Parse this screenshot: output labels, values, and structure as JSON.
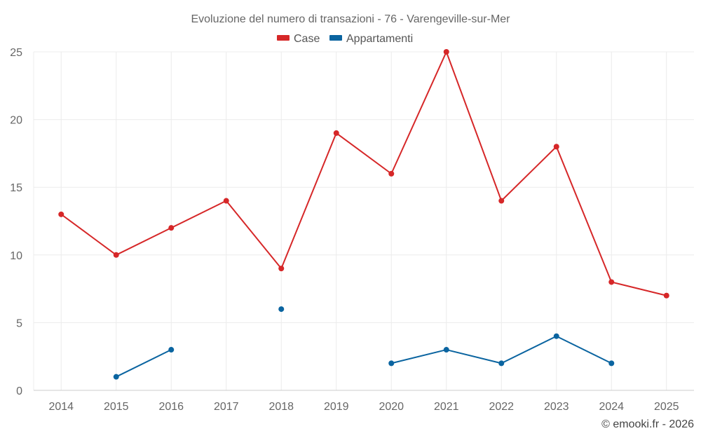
{
  "chart_data": {
    "type": "line",
    "title": "Evoluzione del numero di transazioni - 76 - Varengeville-sur-Mer",
    "x": [
      "2014",
      "2015",
      "2016",
      "2017",
      "2018",
      "2019",
      "2020",
      "2021",
      "2022",
      "2023",
      "2024",
      "2025"
    ],
    "series": [
      {
        "name": "Case",
        "color": "#d62728",
        "values": [
          13,
          10,
          12,
          14,
          9,
          19,
          16,
          25,
          14,
          18,
          8,
          7
        ]
      },
      {
        "name": "Appartamenti",
        "color": "#0a64a0",
        "values": [
          null,
          1,
          3,
          null,
          6,
          null,
          2,
          3,
          2,
          4,
          2,
          null
        ]
      }
    ],
    "ylim": [
      0,
      25
    ],
    "yticks": [
      0,
      5,
      10,
      15,
      20,
      25
    ],
    "xlabel": "",
    "ylabel": "",
    "grid": true,
    "legend_position": "top-center"
  },
  "credit": "© emooki.fr - 2026"
}
